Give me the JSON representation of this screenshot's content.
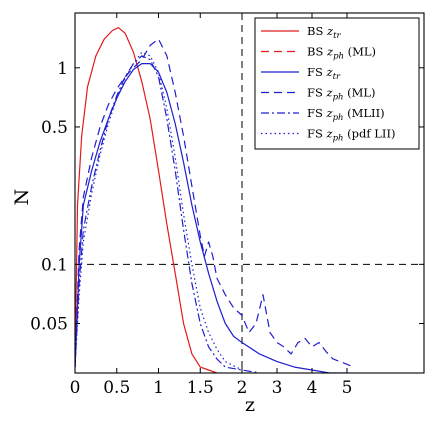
{
  "chart_data": {
    "type": "line",
    "title": "",
    "xlabel": "z",
    "ylabel": "N",
    "xlim": [
      0,
      5.5
    ],
    "ylim": [
      0.028,
      1.9
    ],
    "yscale": "log",
    "xscale": "piecewise-compressed",
    "x_axis_breakpoints": {
      "linear_upto": 2,
      "upper_ticks": [
        2,
        3,
        4,
        5
      ]
    },
    "x_ticks": [
      0,
      0.5,
      1,
      1.5,
      2,
      3,
      4,
      5
    ],
    "x_tick_labels": [
      "0",
      "0.5",
      "1",
      "1.5",
      "2",
      "3",
      "4",
      "5"
    ],
    "y_ticks": [
      0.05,
      0.1,
      0.5,
      1
    ],
    "y_tick_labels": [
      "0.05",
      "0.1",
      "0.5",
      "1"
    ],
    "grid": false,
    "legend_position": "top-right",
    "reference_lines": [
      {
        "orientation": "vertical",
        "x": 2,
        "style": "dashed",
        "color": "#000000"
      },
      {
        "orientation": "horizontal",
        "y": 0.1,
        "style": "dashed",
        "color": "#000000"
      }
    ],
    "series": [
      {
        "name_main": "BS ",
        "name_var": "z",
        "name_sub": "tr",
        "name_suffix": "",
        "color": "#e41a1c",
        "dash": "solid",
        "x": [
          0.0,
          0.03,
          0.08,
          0.15,
          0.25,
          0.35,
          0.45,
          0.52,
          0.6,
          0.7,
          0.8,
          0.9,
          1.0,
          1.1,
          1.2,
          1.3,
          1.4,
          1.5,
          1.6,
          1.7
        ],
        "y": [
          0.03,
          0.2,
          0.45,
          0.8,
          1.15,
          1.4,
          1.55,
          1.6,
          1.5,
          1.2,
          0.85,
          0.55,
          0.3,
          0.16,
          0.09,
          0.05,
          0.035,
          0.03,
          0.029,
          0.028
        ]
      },
      {
        "name_main": "BS ",
        "name_var": "z",
        "name_sub": "ph",
        "name_suffix": " (ML)",
        "color": "#e41a1c",
        "dash": "dashed",
        "x": [],
        "y": []
      },
      {
        "name_main": "FS ",
        "name_var": "z",
        "name_sub": "tr",
        "name_suffix": "",
        "color": "#1f1fd0",
        "dash": "solid",
        "x": [
          0.0,
          0.05,
          0.1,
          0.2,
          0.3,
          0.4,
          0.5,
          0.6,
          0.7,
          0.8,
          0.9,
          1.0,
          1.1,
          1.2,
          1.3,
          1.4,
          1.5,
          1.6,
          1.7,
          1.8,
          1.9,
          2.0,
          2.5,
          3.0,
          3.5,
          4.0,
          4.5,
          5.0
        ],
        "y": [
          0.03,
          0.1,
          0.2,
          0.3,
          0.42,
          0.55,
          0.7,
          0.85,
          0.98,
          1.05,
          1.05,
          0.95,
          0.75,
          0.52,
          0.33,
          0.2,
          0.13,
          0.09,
          0.065,
          0.05,
          0.043,
          0.04,
          0.035,
          0.032,
          0.03,
          0.029,
          0.028,
          0.028
        ]
      },
      {
        "name_main": "FS ",
        "name_var": "z",
        "name_sub": "ph",
        "name_suffix": " (ML)",
        "color": "#1f1fd0",
        "dash": "dashed",
        "x": [
          0.0,
          0.05,
          0.1,
          0.2,
          0.3,
          0.4,
          0.5,
          0.6,
          0.7,
          0.8,
          0.9,
          1.0,
          1.1,
          1.2,
          1.3,
          1.4,
          1.5,
          1.55,
          1.6,
          1.65,
          1.7,
          1.8,
          1.9,
          2.0,
          2.2,
          2.4,
          2.6,
          2.8,
          3.0,
          3.2,
          3.4,
          3.6,
          3.8,
          4.0,
          4.2,
          4.4,
          4.6,
          4.8,
          5.0,
          5.2
        ],
        "y": [
          0.03,
          0.12,
          0.22,
          0.35,
          0.5,
          0.65,
          0.78,
          0.9,
          1.0,
          1.1,
          1.3,
          1.4,
          1.15,
          0.75,
          0.45,
          0.25,
          0.14,
          0.11,
          0.13,
          0.11,
          0.085,
          0.07,
          0.06,
          0.055,
          0.045,
          0.05,
          0.07,
          0.045,
          0.04,
          0.038,
          0.035,
          0.04,
          0.042,
          0.038,
          0.04,
          0.036,
          0.033,
          0.032,
          0.031,
          0.03
        ]
      },
      {
        "name_main": "FS ",
        "name_var": "z",
        "name_sub": "ph",
        "name_suffix": " (MLII)",
        "color": "#1f1fd0",
        "dash": "dashdot",
        "x": [
          0.0,
          0.05,
          0.1,
          0.2,
          0.3,
          0.4,
          0.5,
          0.6,
          0.7,
          0.8,
          0.9,
          1.0,
          1.1,
          1.2,
          1.3,
          1.4,
          1.5,
          1.6,
          1.7,
          1.8,
          2.0,
          2.5
        ],
        "y": [
          0.03,
          0.08,
          0.15,
          0.25,
          0.38,
          0.55,
          0.72,
          0.9,
          1.05,
          1.15,
          1.1,
          0.9,
          0.55,
          0.3,
          0.15,
          0.08,
          0.05,
          0.038,
          0.033,
          0.03,
          0.029,
          0.028
        ]
      },
      {
        "name_main": "FS ",
        "name_var": "z",
        "name_sub": "ph",
        "name_suffix": " (pdf LII)",
        "color": "#1f1fd0",
        "dash": "dotted",
        "x": [
          0.0,
          0.05,
          0.1,
          0.2,
          0.3,
          0.4,
          0.5,
          0.6,
          0.7,
          0.8,
          0.9,
          1.0,
          1.1,
          1.2,
          1.3,
          1.4,
          1.5,
          1.6,
          1.7,
          1.8,
          2.0
        ],
        "y": [
          0.03,
          0.07,
          0.13,
          0.23,
          0.36,
          0.52,
          0.7,
          0.88,
          1.05,
          1.2,
          1.15,
          0.95,
          0.62,
          0.35,
          0.18,
          0.1,
          0.06,
          0.045,
          0.037,
          0.032,
          0.029
        ]
      }
    ]
  }
}
